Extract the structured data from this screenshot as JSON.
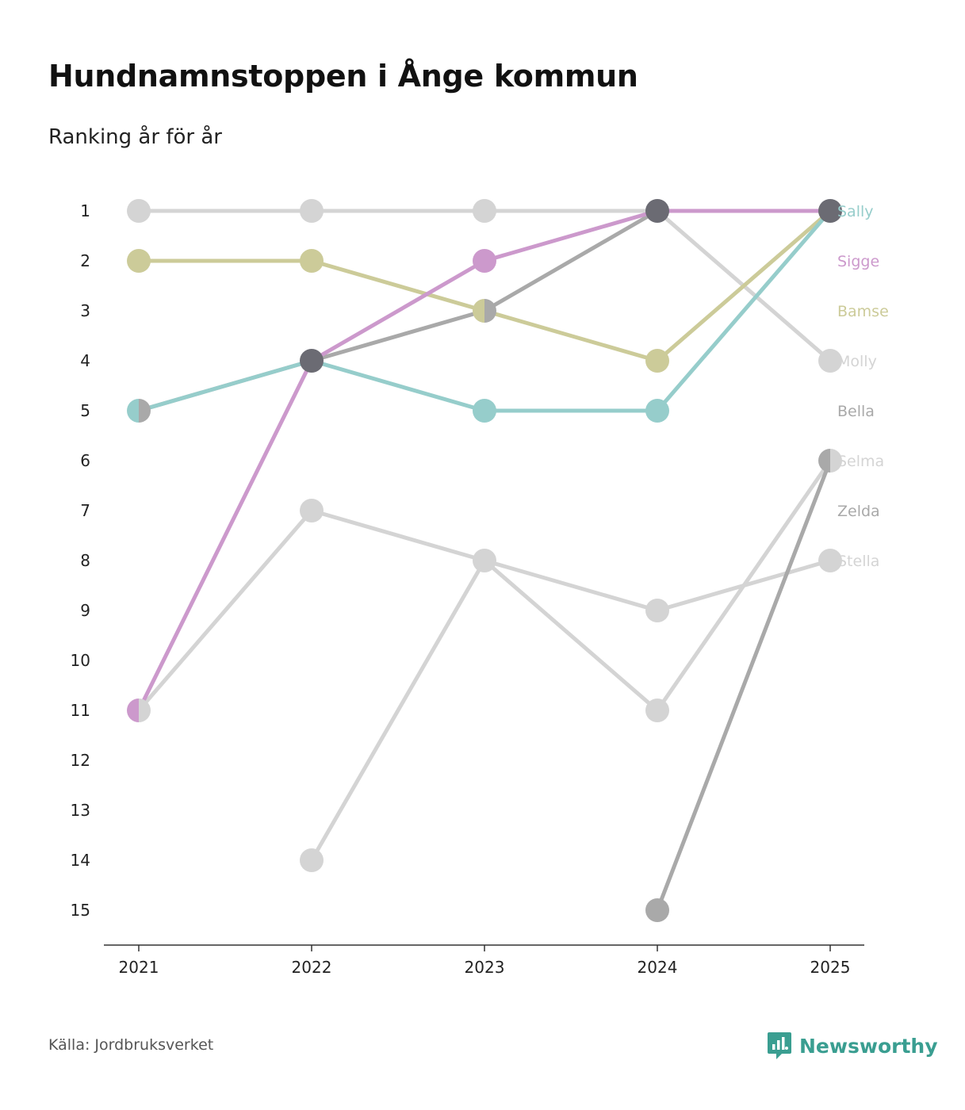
{
  "title": "Hundnamnstoppen i Ånge kommun",
  "subtitle": "Ranking år för år",
  "source": "Källa: Jordbruksverket",
  "brand": {
    "name": "Newsworthy",
    "icon": "newsworthy-logo-icon",
    "color": "#3a9e91"
  },
  "chart_data": {
    "type": "line",
    "title": "Hundnamnstoppen i Ånge kommun",
    "subtitle": "Ranking år för år",
    "xlabel": "",
    "ylabel": "",
    "ylim": [
      1,
      15
    ],
    "y_inverted": true,
    "y_ticks": [
      "1",
      "2",
      "3",
      "4",
      "5",
      "6",
      "7",
      "8",
      "9",
      "10",
      "11",
      "12",
      "13",
      "14",
      "15"
    ],
    "categories": [
      "2021",
      "2022",
      "2023",
      "2024",
      "2025"
    ],
    "series": [
      {
        "name": "Molly",
        "color": "#d4d4d4",
        "values": [
          1,
          1,
          1,
          1,
          4
        ]
      },
      {
        "name": "Stella",
        "color": "#d4d4d4",
        "values": [
          11,
          7,
          8,
          9,
          8
        ]
      },
      {
        "name": "Selma",
        "color": "#d4d4d4",
        "values": [
          null,
          14,
          8,
          11,
          6
        ]
      },
      {
        "name": "Zelda",
        "color": "#a9a9a9",
        "values": [
          null,
          null,
          null,
          15,
          6
        ]
      },
      {
        "name": "Bella",
        "color": "#a9a9a9",
        "values": [
          5,
          4,
          3,
          1,
          1
        ]
      },
      {
        "name": "Bamse",
        "color": "#cccb99",
        "values": [
          2,
          2,
          3,
          4,
          1
        ]
      },
      {
        "name": "Sally",
        "color": "#96cdcb",
        "values": [
          5,
          4,
          5,
          5,
          1
        ]
      },
      {
        "name": "Sigge",
        "color": "#cc99cc",
        "values": [
          11,
          4,
          2,
          1,
          1
        ]
      }
    ],
    "end_labels": [
      "Sally",
      "Sigge",
      "Bamse",
      "Molly",
      "Bella",
      "Selma",
      "Zelda",
      "Stella"
    ],
    "overlap_color": "#6b6b73",
    "legend": "end-of-line labels"
  }
}
